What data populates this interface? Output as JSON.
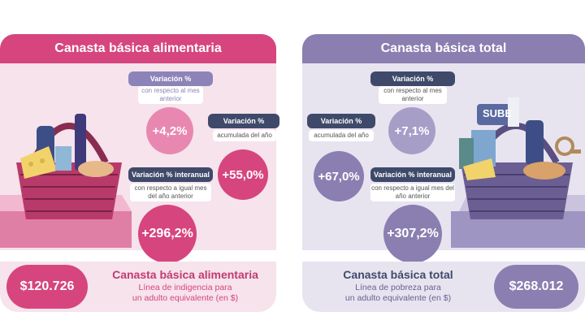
{
  "left": {
    "header": "Canasta básica alimentaria",
    "monthly": {
      "tag": "Variación %",
      "sub": "con respecto al mes anterior",
      "value": "+4,2%"
    },
    "accumulated": {
      "tag": "Variación %",
      "sub": "acumulada del año",
      "value": "+55,0%"
    },
    "interannual": {
      "tag": "Variación % interanual",
      "sub": "con respecto a igual mes del año anterior",
      "value": "+296,2%"
    },
    "footer": {
      "amount": "$120.726",
      "title": "Canasta básica alimentaria",
      "desc_line1": "Línea de indigencia para",
      "desc_line2": "un adulto equivalente (en $)"
    },
    "colors": {
      "primary": "#d6457e",
      "light": "#f6e3ec",
      "circle": "#e888b0",
      "tag": "#8c84b8"
    }
  },
  "right": {
    "header": "Canasta básica total",
    "monthly": {
      "tag": "Variación %",
      "sub": "con respecto al mes anterior",
      "value": "+7,1%"
    },
    "accumulated": {
      "tag": "Variación %",
      "sub": "acumulada del año",
      "value": "+67,0%"
    },
    "interannual": {
      "tag": "Variación % interanual",
      "sub": "con respecto a igual mes del año anterior",
      "value": "+307,2%"
    },
    "footer": {
      "amount": "$268.012",
      "title": "Canasta básica total",
      "desc_line1": "Línea de pobreza para",
      "desc_line2": "un adulto equivalente (en $)"
    },
    "basket_label": "SUBE",
    "colors": {
      "primary": "#8a7fb0",
      "light": "#e7e4f0",
      "circle": "#a79ec8",
      "tag": "#3f4a6a"
    }
  }
}
